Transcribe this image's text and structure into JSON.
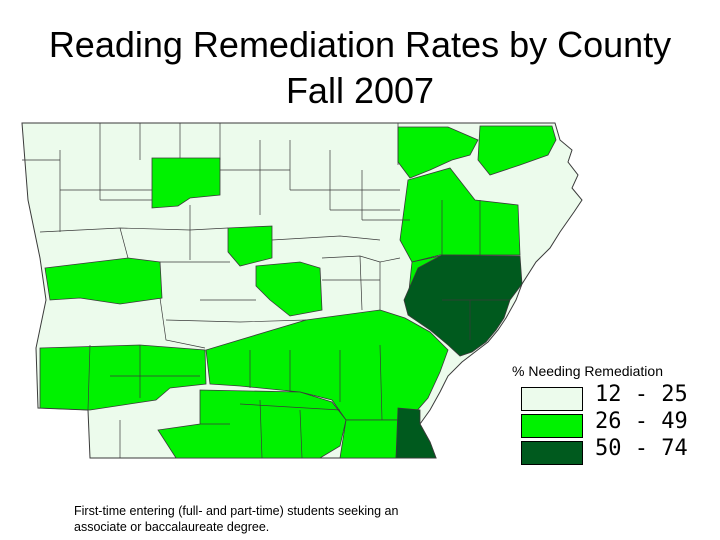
{
  "title": {
    "line1": "Reading Remediation Rates by County",
    "line2": "Fall 2007"
  },
  "legend": {
    "title": "% Needing Remediation",
    "items": [
      {
        "label": "12 - 25",
        "color": "#ecfbec"
      },
      {
        "label": "26 - 49",
        "color": "#00f200"
      },
      {
        "label": "50 - 74",
        "color": "#005a1e"
      }
    ]
  },
  "footnote": "First-time entering (full- and part-time) students seeking an associate or baccalaureate degree.",
  "colors": {
    "border": "#3a3a3a"
  }
}
